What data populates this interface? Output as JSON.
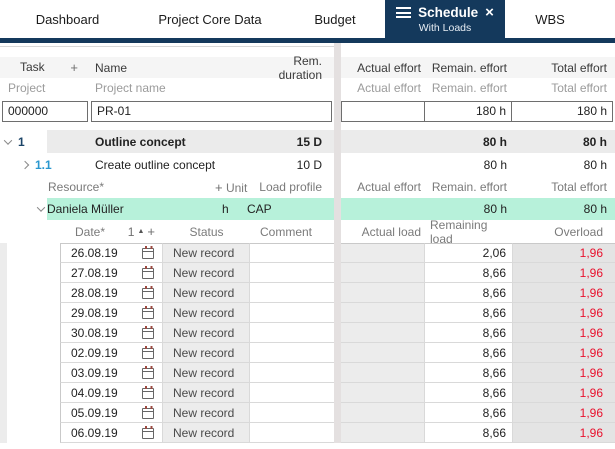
{
  "tabs": {
    "dashboard": "Dashboard",
    "project_core_data": "Project Core Data",
    "budget": "Budget",
    "schedule": "Schedule",
    "schedule_sub": "With Loads",
    "close": "×",
    "wbs": "WBS"
  },
  "task_grid": {
    "header": {
      "task": "Task",
      "add": "+",
      "name": "Name",
      "rem_duration": "Rem. duration"
    },
    "subheader": {
      "task": "Project",
      "name": "Project name"
    },
    "effort_header": {
      "actual": "Actual effort",
      "remain": "Remain. effort",
      "total": "Total effort"
    },
    "project_row": {
      "id": "000000",
      "name": "PR-01",
      "actual": "",
      "remain": "180 h",
      "total": "180 h"
    },
    "tasks": [
      {
        "num": "1",
        "name": "Outline concept",
        "duration": "15 D",
        "actual": "",
        "remain": "80 h",
        "total": "80 h"
      },
      {
        "num": "1.1",
        "name": "Create outline concept",
        "duration": "10 D",
        "actual": "",
        "remain": "80 h",
        "total": "80 h"
      }
    ]
  },
  "resource_section": {
    "header": {
      "resource": "Resource*",
      "add": "+",
      "unit": "Unit",
      "load_profile": "Load profile",
      "actual": "Actual effort",
      "remain": "Remain. effort",
      "total": "Total effort"
    },
    "row": {
      "name": "Daniela Müller",
      "unit": "h",
      "load_profile": "CAP",
      "actual": "",
      "remain": "80 h",
      "total": "80 h"
    }
  },
  "load_table": {
    "header": {
      "date": "Date*",
      "sort_order": "1",
      "add": "+",
      "status": "Status",
      "comment": "Comment",
      "actual": "Actual load",
      "remaining": "Remaining load",
      "overload": "Overload"
    },
    "rows": [
      {
        "date": "26.08.19",
        "status": "New record",
        "comment": "",
        "actual": "",
        "remaining": "2,06",
        "overload": "1,96"
      },
      {
        "date": "27.08.19",
        "status": "New record",
        "comment": "",
        "actual": "",
        "remaining": "8,66",
        "overload": "1,96"
      },
      {
        "date": "28.08.19",
        "status": "New record",
        "comment": "",
        "actual": "",
        "remaining": "8,66",
        "overload": "1,96"
      },
      {
        "date": "29.08.19",
        "status": "New record",
        "comment": "",
        "actual": "",
        "remaining": "8,66",
        "overload": "1,96"
      },
      {
        "date": "30.08.19",
        "status": "New record",
        "comment": "",
        "actual": "",
        "remaining": "8,66",
        "overload": "1,96"
      },
      {
        "date": "02.09.19",
        "status": "New record",
        "comment": "",
        "actual": "",
        "remaining": "8,66",
        "overload": "1,96"
      },
      {
        "date": "03.09.19",
        "status": "New record",
        "comment": "",
        "actual": "",
        "remaining": "8,66",
        "overload": "1,96"
      },
      {
        "date": "04.09.19",
        "status": "New record",
        "comment": "",
        "actual": "",
        "remaining": "8,66",
        "overload": "1,96"
      },
      {
        "date": "05.09.19",
        "status": "New record",
        "comment": "",
        "actual": "",
        "remaining": "8,66",
        "overload": "1,96"
      },
      {
        "date": "06.09.19",
        "status": "New record",
        "comment": "",
        "actual": "",
        "remaining": "8,66",
        "overload": "1,96"
      }
    ]
  },
  "colors": {
    "navy": "#14395c",
    "highlight_green": "#b7f1da",
    "overload_red": "#e8112d",
    "row_gray": "#ebebeb"
  }
}
